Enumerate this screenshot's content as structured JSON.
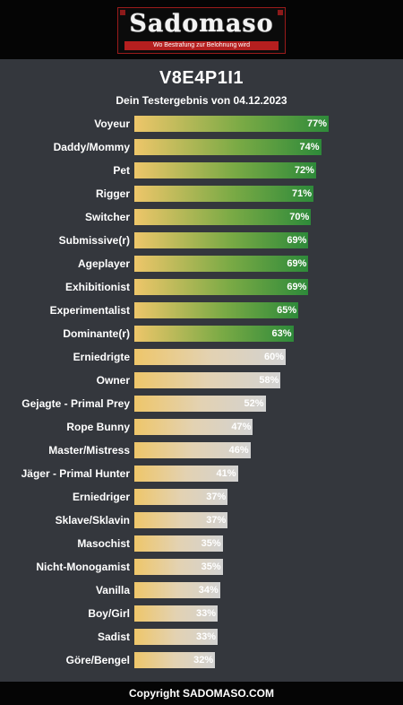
{
  "brand": {
    "name": "Sadomaso",
    "tagline": "Wo Bestrafung zur Belohnung wird",
    "accent": "#b51f1f"
  },
  "header": {
    "title": "V8E4P1I1",
    "subtitle": "Dein Testergebnis von 04.12.2023"
  },
  "footer": {
    "text": "Copyright SADOMASO.COM"
  },
  "chart_data": {
    "type": "bar",
    "orientation": "horizontal",
    "title": "V8E4P1I1",
    "subtitle": "Dein Testergebnis von 04.12.2023",
    "unit": "%",
    "xlim": [
      0,
      100
    ],
    "highlight_threshold": 63,
    "colors": {
      "high": "#2e8a3a",
      "low": "#d2d2d2",
      "start": "#eec66a"
    },
    "categories": [
      "Voyeur",
      "Daddy/Mommy",
      "Pet",
      "Rigger",
      "Switcher",
      "Submissive(r)",
      "Ageplayer",
      "Exhibitionist",
      "Experimentalist",
      "Dominante(r)",
      "Erniedrigte",
      "Owner",
      "Gejagte - Primal Prey",
      "Rope Bunny",
      "Master/Mistress",
      "Jäger - Primal Hunter",
      "Erniedriger",
      "Sklave/Sklavin",
      "Masochist",
      "Nicht-Monogamist",
      "Vanilla",
      "Boy/Girl",
      "Sadist",
      "Göre/Bengel"
    ],
    "values": [
      77,
      74,
      72,
      71,
      70,
      69,
      69,
      69,
      65,
      63,
      60,
      58,
      52,
      47,
      46,
      41,
      37,
      37,
      35,
      35,
      34,
      33,
      33,
      32
    ],
    "value_labels": [
      "77%",
      "74%",
      "72%",
      "71%",
      "70%",
      "69%",
      "69%",
      "69%",
      "65%",
      "63%",
      "60%",
      "58%",
      "52%",
      "47%",
      "46%",
      "41%",
      "37%",
      "37%",
      "35%",
      "35%",
      "34%",
      "33%",
      "33%",
      "32%"
    ]
  }
}
